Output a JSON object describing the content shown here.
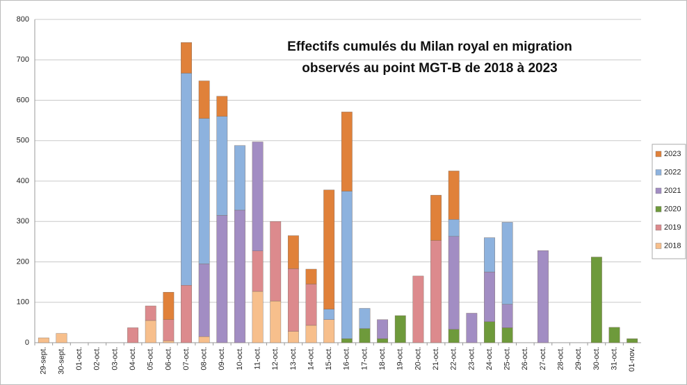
{
  "chart_data": {
    "type": "stacked_bar",
    "title": [
      "Effectifs cumulés du Milan royal en migration",
      "observés au point MGT-B de 2018 à 2023"
    ],
    "categories": [
      "29-sept.",
      "30-sept.",
      "01-oct.",
      "02-oct.",
      "03-oct.",
      "04-oct.",
      "05-oct.",
      "06-oct.",
      "07-oct.",
      "08-oct.",
      "09-oct.",
      "10-oct.",
      "11-oct.",
      "12-oct.",
      "13-oct.",
      "14-oct.",
      "15-oct.",
      "16-oct.",
      "17-oct.",
      "18-oct.",
      "19-oct.",
      "20-oct.",
      "21-oct.",
      "22-oct.",
      "23-oct.",
      "24-oct.",
      "25-oct.",
      "26-oct.",
      "27-oct.",
      "28-oct.",
      "29-oct.",
      "30-oct.",
      "31-oct.",
      "01-nov."
    ],
    "series": [
      {
        "name": "2018",
        "color": "#f7bf8c",
        "values": [
          12,
          23,
          0,
          0,
          0,
          0,
          55,
          5,
          0,
          15,
          0,
          0,
          127,
          103,
          28,
          43,
          57,
          0,
          0,
          0,
          0,
          0,
          0,
          0,
          0,
          0,
          0,
          0,
          0,
          0,
          0,
          0,
          0,
          0
        ]
      },
      {
        "name": "2019",
        "color": "#dc8a8d",
        "values": [
          0,
          0,
          0,
          0,
          0,
          37,
          36,
          52,
          142,
          0,
          0,
          0,
          100,
          197,
          155,
          102,
          0,
          0,
          0,
          0,
          0,
          165,
          253,
          0,
          0,
          0,
          0,
          0,
          0,
          0,
          0,
          0,
          0,
          0
        ]
      },
      {
        "name": "2020",
        "color": "#6e9a3b",
        "values": [
          0,
          0,
          0,
          0,
          0,
          0,
          0,
          0,
          0,
          0,
          0,
          0,
          0,
          0,
          0,
          0,
          0,
          10,
          35,
          10,
          67,
          0,
          0,
          33,
          0,
          52,
          37,
          0,
          0,
          0,
          0,
          212,
          38,
          10
        ]
      },
      {
        "name": "2021",
        "color": "#a28dc3",
        "values": [
          0,
          0,
          0,
          0,
          0,
          0,
          0,
          0,
          0,
          180,
          315,
          328,
          270,
          0,
          0,
          0,
          0,
          0,
          0,
          47,
          0,
          0,
          0,
          230,
          73,
          123,
          58,
          0,
          228,
          0,
          0,
          0,
          0,
          0
        ]
      },
      {
        "name": "2022",
        "color": "#8db2de",
        "values": [
          0,
          0,
          0,
          0,
          0,
          0,
          0,
          0,
          525,
          360,
          245,
          160,
          0,
          0,
          0,
          0,
          26,
          365,
          50,
          0,
          0,
          0,
          0,
          42,
          0,
          85,
          203,
          0,
          0,
          0,
          0,
          0,
          0,
          0
        ]
      },
      {
        "name": "2023",
        "color": "#e0813a",
        "values": [
          0,
          0,
          0,
          0,
          0,
          0,
          0,
          68,
          76,
          93,
          50,
          0,
          0,
          0,
          82,
          37,
          295,
          196,
          0,
          0,
          0,
          0,
          112,
          120,
          0,
          0,
          0,
          0,
          0,
          0,
          0,
          0,
          0,
          0
        ]
      }
    ],
    "ylim": [
      0,
      800
    ],
    "yticks": [
      0,
      100,
      200,
      300,
      400,
      500,
      600,
      700,
      800
    ],
    "grid": true,
    "legend": "right"
  }
}
